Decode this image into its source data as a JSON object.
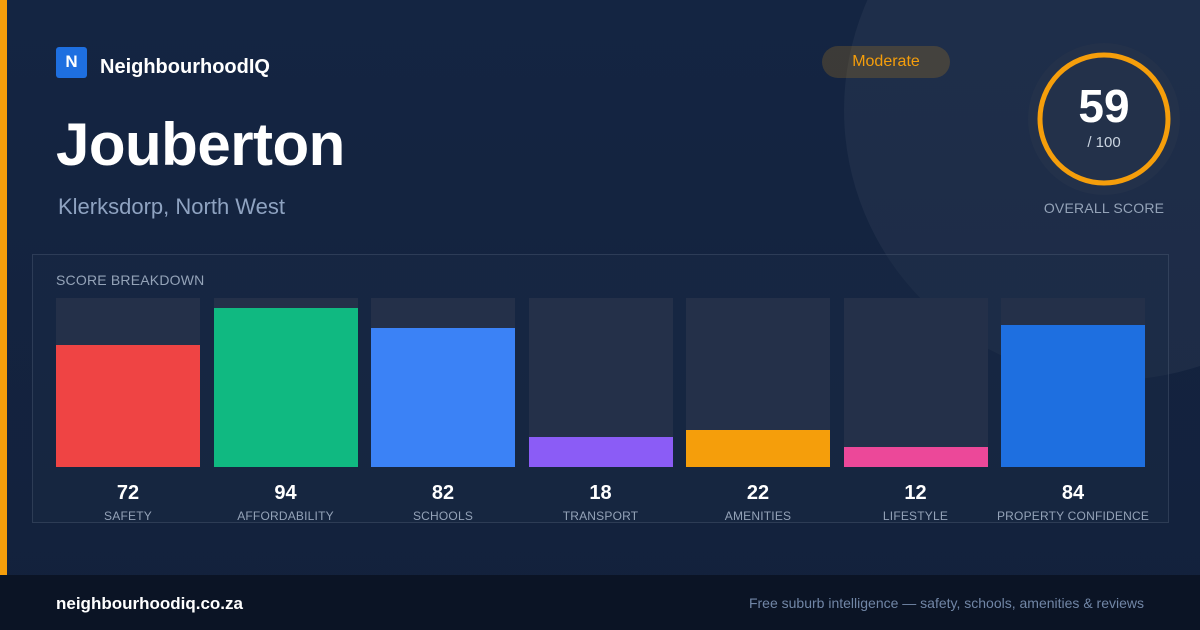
{
  "brand": {
    "logo_letter": "N",
    "name": "NeighbourhoodIQ",
    "color": "#1e6fe0"
  },
  "badge": {
    "label": "Moderate",
    "color": "#f59e0b"
  },
  "suburb": {
    "name": "Jouberton",
    "location": "Klerksdorp, North West"
  },
  "overall": {
    "score": "59",
    "max_label": "/ 100",
    "label": "OVERALL SCORE",
    "value": 59,
    "max": 100,
    "ring_color": "#f59e0b"
  },
  "breakdown": {
    "title": "SCORE BREAKDOWN"
  },
  "chart_data": {
    "type": "bar",
    "categories": [
      "SAFETY",
      "AFFORDABILITY",
      "SCHOOLS",
      "TRANSPORT",
      "AMENITIES",
      "LIFESTYLE",
      "PROPERTY CONFIDENCE"
    ],
    "values": [
      72,
      94,
      82,
      18,
      22,
      12,
      84
    ],
    "colors": [
      "#ef4444",
      "#10b981",
      "#3b82f6",
      "#8b5cf6",
      "#f59e0b",
      "#ec4899",
      "#1e6fe0"
    ],
    "ylim": [
      0,
      100
    ],
    "title": "SCORE BREAKDOWN",
    "grid": false
  },
  "footer": {
    "url": "neighbourhoodiq.co.za",
    "tagline": "Free suburb intelligence — safety, schools, amenities & reviews"
  }
}
